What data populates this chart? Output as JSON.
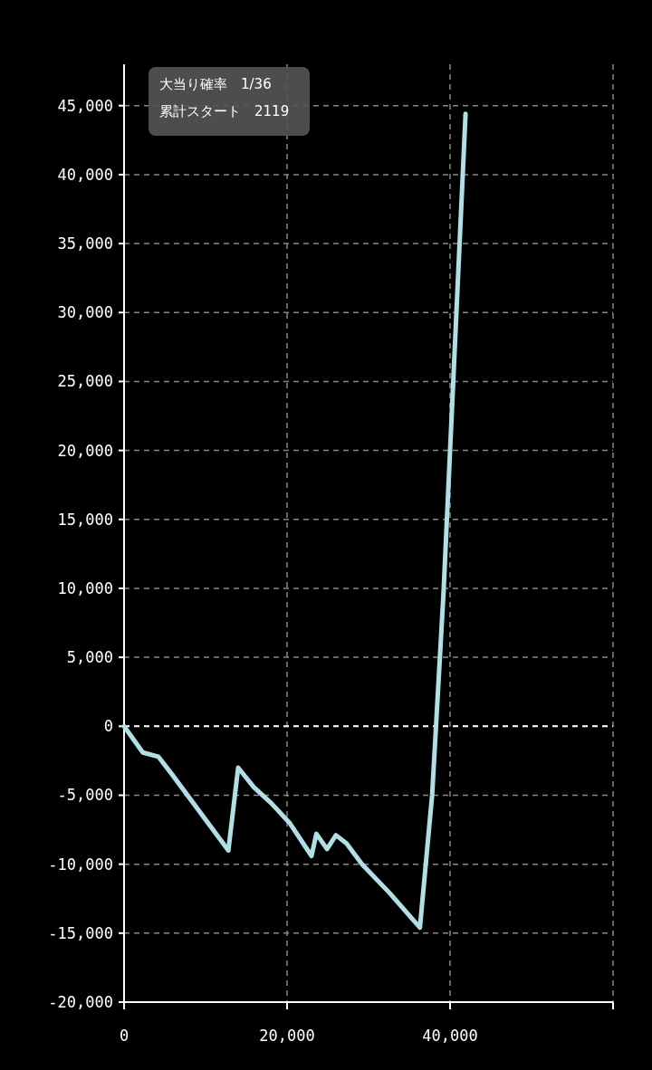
{
  "chart_data": {
    "type": "line",
    "x": [
      0,
      2300,
      4200,
      5900,
      12800,
      14000,
      15900,
      18100,
      20300,
      23000,
      23600,
      24900,
      26000,
      27300,
      29200,
      32600,
      36300,
      37800,
      39200,
      41900
    ],
    "series": [
      {
        "color": "#b0e0e6",
        "values": [
          0,
          -1900,
          -2200,
          -3500,
          -9000,
          -3000,
          -4400,
          -5600,
          -7000,
          -9400,
          -7800,
          -8900,
          -7900,
          -8500,
          -10000,
          -12100,
          -14600,
          -5000,
          9700,
          44400
        ]
      }
    ],
    "xlim": [
      0,
      60000
    ],
    "xticks": [
      0,
      {
        "value": 20000,
        "label": "20,000"
      },
      {
        "value": 40000,
        "label": "40,000"
      },
      {
        "value": 60000,
        "label": null
      }
    ],
    "ylim": [
      -20000,
      48000
    ],
    "yticks": [
      {
        "value": -20000,
        "label": "-20,000"
      },
      {
        "value": -15000,
        "label": "-15,000"
      },
      {
        "value": -10000,
        "label": "-10,000"
      },
      {
        "value": -5000,
        "label": "-5,000"
      },
      0,
      {
        "value": 5000,
        "label": "5,000"
      },
      {
        "value": 10000,
        "label": "10,000"
      },
      {
        "value": 15000,
        "label": "15,000"
      },
      {
        "value": 20000,
        "label": "20,000"
      },
      {
        "value": 25000,
        "label": "25,000"
      },
      {
        "value": 30000,
        "label": "30,000"
      },
      {
        "value": 35000,
        "label": "35,000"
      },
      {
        "value": 40000,
        "label": "40,000"
      },
      {
        "value": 45000,
        "label": "45,000"
      }
    ],
    "grid": true,
    "ref_lines": [
      {
        "axis": "y",
        "value": 0,
        "color": "#ffffff",
        "line_style": "dashed"
      }
    ],
    "annotations": [
      "大当り確率　1/36",
      "累計スタート　2119"
    ]
  }
}
